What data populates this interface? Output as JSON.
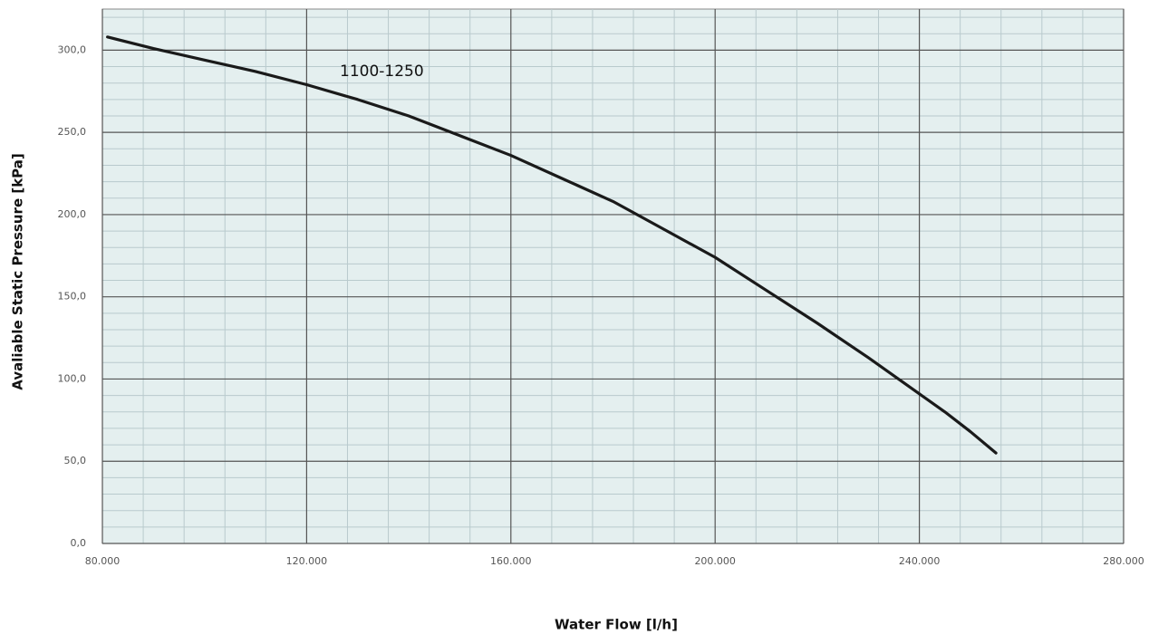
{
  "chart_data": {
    "type": "line",
    "xlabel": "Water Flow [l/h]",
    "ylabel": "Avaliable Static Pressure [kPa]",
    "x": [
      81000,
      90000,
      100000,
      110000,
      120000,
      130000,
      140000,
      150000,
      160000,
      170000,
      180000,
      190000,
      200000,
      210000,
      220000,
      230000,
      240000,
      245000,
      250000,
      255000
    ],
    "series": [
      {
        "name": "1100-1250",
        "color": "#1a1a1a",
        "values": [
          308,
          301,
          294,
          287,
          279,
          270,
          260,
          248,
          236,
          222,
          208,
          191,
          174,
          154,
          134,
          113,
          91,
          80,
          68,
          55
        ]
      }
    ],
    "xlim": [
      80000,
      280000
    ],
    "ylim": [
      0,
      325
    ],
    "xticks": [
      {
        "value": 80000,
        "label": "80.000"
      },
      {
        "value": 120000,
        "label": "120.000"
      },
      {
        "value": 160000,
        "label": "160.000"
      },
      {
        "value": 200000,
        "label": "200.000"
      },
      {
        "value": 240000,
        "label": "240.000"
      },
      {
        "value": 280000,
        "label": "280.000"
      }
    ],
    "yticks": [
      {
        "value": 0,
        "label": "0,0"
      },
      {
        "value": 50,
        "label": "50,0"
      },
      {
        "value": 100,
        "label": "100,0"
      },
      {
        "value": 150,
        "label": "150,0"
      },
      {
        "value": 200,
        "label": "200,0"
      },
      {
        "value": 250,
        "label": "250,0"
      },
      {
        "value": 300,
        "label": "300,0"
      }
    ],
    "minor_xticks": [
      88000,
      96000,
      104000,
      112000,
      128000,
      136000,
      144000,
      152000,
      168000,
      176000,
      184000,
      192000,
      208000,
      216000,
      224000,
      232000,
      248000,
      256000,
      264000,
      272000
    ],
    "minor_yticks": [
      10,
      20,
      30,
      40,
      60,
      70,
      80,
      90,
      110,
      120,
      130,
      140,
      160,
      170,
      180,
      190,
      210,
      220,
      230,
      240,
      260,
      270,
      280,
      290,
      310,
      320
    ],
    "grid": true
  }
}
